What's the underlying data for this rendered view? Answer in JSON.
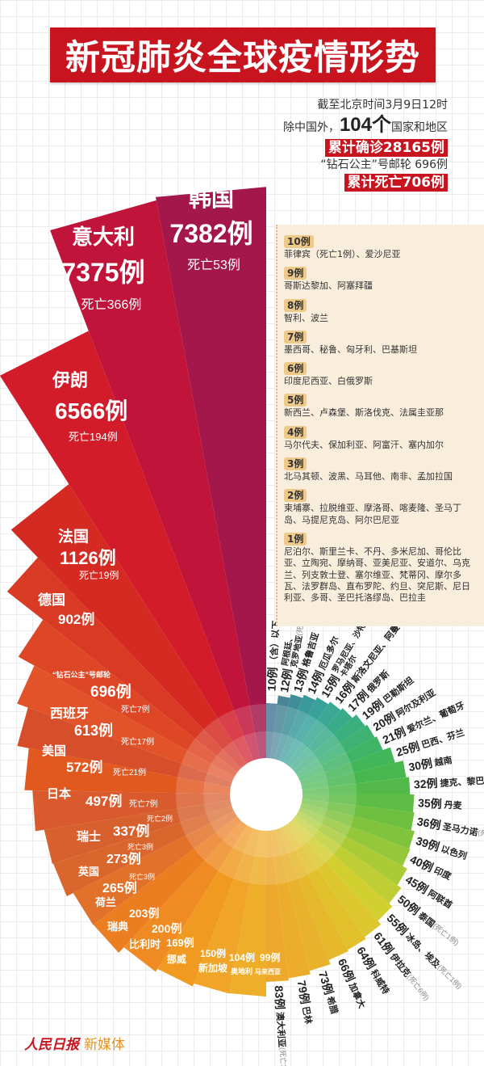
{
  "title": "新冠肺炎全球疫情形势",
  "summary": {
    "as_of": "截至北京时间3月9日12时",
    "countries_prefix": "除中国外，",
    "countries_count": "104个",
    "countries_suffix": "国家和地区",
    "total_confirmed": "累计确诊28165例",
    "cruise": "“钻石公主”号邮轮 696例",
    "total_deaths": "累计死亡706例"
  },
  "infobox": {
    "groups": [
      {
        "tag": "10例",
        "names": "菲律宾（死亡1例）、爱沙尼亚"
      },
      {
        "tag": "9例",
        "names": "哥斯达黎加、阿塞拜疆"
      },
      {
        "tag": "8例",
        "names": "智利、波兰"
      },
      {
        "tag": "7例",
        "names": "墨西哥、秘鲁、匈牙利、巴基斯坦"
      },
      {
        "tag": "6例",
        "names": "印度尼西亚、白俄罗斯"
      },
      {
        "tag": "5例",
        "names": "新西兰、卢森堡、斯洛伐克、法属圭亚那"
      },
      {
        "tag": "4例",
        "names": "马尔代夫、保加利亚、阿富汗、塞内加尔"
      },
      {
        "tag": "3例",
        "names": "北马其顿、波黑、马耳他、南非、孟加拉国"
      },
      {
        "tag": "2例",
        "names": "柬埔寨、拉脱维亚、摩洛哥、喀麦隆、圣马丁岛、马提尼克岛、阿尔巴尼亚"
      },
      {
        "tag": "1例",
        "names": "尼泊尔、斯里兰卡、不丹、多米尼加、哥伦比亚、立陶宛、摩纳哥、亚美尼亚、安道尔、乌克兰、列支敦士登、塞尔维亚、梵蒂冈、摩尔多瓦、法罗群岛、直布罗陀、约旦、突尼斯、尼日利亚、多哥、圣巴托洛缪岛、巴拉圭"
      }
    ]
  },
  "chart_data": {
    "type": "radial-bar",
    "unit": "例",
    "left": [
      {
        "name": "韩国",
        "cases": 7382,
        "deaths": "死亡53例",
        "color": "#a3174a"
      },
      {
        "name": "意大利",
        "cases": 7375,
        "deaths": "死亡366例",
        "color": "#c0143a"
      },
      {
        "name": "伊朗",
        "cases": 6566,
        "deaths": "死亡194例",
        "color": "#d21c2a"
      },
      {
        "name": "法国",
        "cases": 1126,
        "deaths": "死亡19例",
        "color": "#d42a22"
      },
      {
        "name": "德国",
        "cases": 902,
        "deaths": "",
        "color": "#d83a24"
      },
      {
        "name": "“钻石公主”号邮轮",
        "cases": 696,
        "deaths": "死亡7例",
        "color": "#de4726"
      },
      {
        "name": "西班牙",
        "cases": 613,
        "deaths": "死亡17例",
        "color": "#e2532a"
      },
      {
        "name": "美国",
        "cases": 572,
        "deaths": "死亡21例",
        "color": "#d64e2a"
      },
      {
        "name": "日本",
        "cases": 497,
        "deaths": "死亡7例",
        "color": "#e2591f"
      },
      {
        "name": "瑞士",
        "cases": 337,
        "deaths": "死亡2例",
        "color": "#d95a2c"
      },
      {
        "name": "英国",
        "cases": 273,
        "deaths": "死亡3例",
        "color": "#d6602e"
      },
      {
        "name": "荷兰",
        "cases": 265,
        "deaths": "死亡3例",
        "color": "#d9672d"
      },
      {
        "name": "瑞典",
        "cases": 203,
        "deaths": "",
        "color": "#e2722a"
      },
      {
        "name": "比利时",
        "cases": 200,
        "deaths": "",
        "color": "#ec7e22"
      },
      {
        "name": "挪威",
        "cases": 169,
        "deaths": "",
        "color": "#ef8b22"
      },
      {
        "name": "新加坡",
        "cases": 150,
        "deaths": "",
        "color": "#f09a22"
      },
      {
        "name": "奥地利",
        "cases": 104,
        "deaths": "",
        "color": "#f0a528"
      },
      {
        "name": "马来西亚",
        "cases": 99,
        "deaths": "",
        "color": "#efae2a"
      }
    ],
    "right": [
      {
        "label": "10例",
        "names": "（含）以下",
        "deaths": "",
        "color": "#4b7a98"
      },
      {
        "label": "12例",
        "names": "阿根廷、克罗地亚",
        "deaths": "(死亡1例)",
        "color": "#4a8597"
      },
      {
        "label": "13例",
        "names": "格鲁吉亚",
        "deaths": "",
        "color": "#3f8f98"
      },
      {
        "label": "14例",
        "names": "厄瓜多尔",
        "deaths": "",
        "color": "#3a9a9a"
      },
      {
        "label": "15例",
        "names": "罗马尼亚、沙特阿拉伯、卡塔尔",
        "deaths": "",
        "color": "#38a29a"
      },
      {
        "label": "16例",
        "names": "斯洛文尼亚、阿曼",
        "deaths": "",
        "color": "#3aa894"
      },
      {
        "label": "17例",
        "names": "俄罗斯",
        "deaths": "",
        "color": "#3aab8a"
      },
      {
        "label": "19例",
        "names": "巴勒斯坦",
        "deaths": "",
        "color": "#3caf7e"
      },
      {
        "label": "20例",
        "names": "阿尔及利亚",
        "deaths": "",
        "color": "#3db272"
      },
      {
        "label": "21例",
        "names": "爱尔兰、葡萄牙",
        "deaths": "",
        "color": "#40b466"
      },
      {
        "label": "25例",
        "names": "巴西、芬兰",
        "deaths": "",
        "color": "#44b65a"
      },
      {
        "label": "30例",
        "names": "越南",
        "deaths": "",
        "color": "#48b750"
      },
      {
        "label": "32例",
        "names": "捷克、黎巴嫩",
        "deaths": "",
        "color": "#52b94a"
      },
      {
        "label": "35例",
        "names": "丹麦",
        "deaths": "",
        "color": "#5fbc44"
      },
      {
        "label": "36例",
        "names": "圣马力诺",
        "deaths": "(死亡1例)",
        "color": "#6ebf40"
      },
      {
        "label": "39例",
        "names": "以色列",
        "deaths": "",
        "color": "#80c33c"
      },
      {
        "label": "40例",
        "names": "印度",
        "deaths": "",
        "color": "#95c73a"
      },
      {
        "label": "45例",
        "names": "阿联酋",
        "deaths": "",
        "color": "#aacb36"
      },
      {
        "label": "50例",
        "names": "泰国",
        "deaths": "(死亡1例)",
        "color": "#bfce34"
      },
      {
        "label": "55例",
        "names": "冰岛、埃及",
        "deaths": "(死亡1例)",
        "color": "#d2cf30"
      },
      {
        "label": "61例",
        "names": "伊拉克",
        "deaths": "(死亡6例)",
        "color": "#dcc82e"
      },
      {
        "label": "64例",
        "names": "科威特",
        "deaths": "",
        "color": "#e2c02c"
      },
      {
        "label": "66例",
        "names": "加拿大",
        "deaths": "",
        "color": "#e6b82c"
      },
      {
        "label": "73例",
        "names": "希腊",
        "deaths": "",
        "color": "#e9b22c"
      },
      {
        "label": "79例",
        "names": "巴林",
        "deaths": "",
        "color": "#ecad2c"
      },
      {
        "label": "83例",
        "names": "澳大利亚",
        "deaths": "(死亡3例)",
        "color": "#eea92c"
      }
    ]
  },
  "footer": {
    "logo": "人民日报",
    "media": "新媒体"
  }
}
